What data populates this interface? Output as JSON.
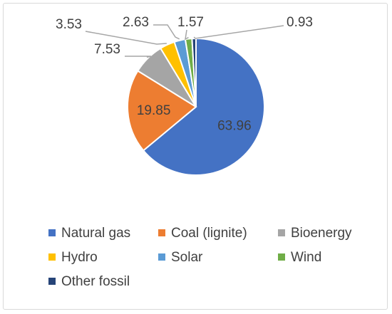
{
  "chart_data": {
    "type": "pie",
    "categories": [
      "Natural gas",
      "Coal (lignite)",
      "Bioenergy",
      "Hydro",
      "Solar",
      "Wind",
      "Other fossil"
    ],
    "values": [
      63.96,
      19.85,
      7.53,
      3.53,
      2.63,
      1.57,
      0.93
    ],
    "data_labels": [
      "63.96",
      "19.85",
      "7.53",
      "3.53",
      "2.63",
      "1.57",
      "0.93"
    ],
    "colors": [
      "#4472c4",
      "#ed7d31",
      "#a5a5a5",
      "#ffc000",
      "#5b9bd5",
      "#70ad47",
      "#264478"
    ],
    "legend_position": "bottom",
    "start_angle_deg": 0,
    "direction": "clockwise"
  }
}
